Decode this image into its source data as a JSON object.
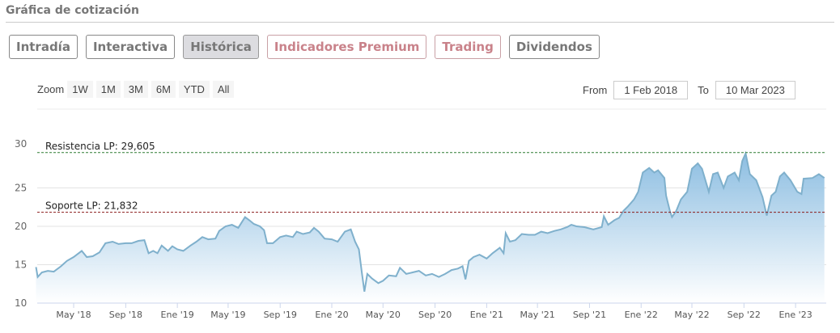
{
  "header": {
    "title": "Gráfica de cotización"
  },
  "tabs": [
    {
      "label": "Intradía",
      "style": "normal"
    },
    {
      "label": "Interactiva",
      "style": "normal"
    },
    {
      "label": "Histórica",
      "style": "active"
    },
    {
      "label": "Indicadores Premium",
      "style": "premium"
    },
    {
      "label": "Trading",
      "style": "premium"
    },
    {
      "label": "Dividendos",
      "style": "normal"
    }
  ],
  "zoom": {
    "label": "Zoom",
    "buttons": [
      "1W",
      "1M",
      "3M",
      "6M",
      "YTD",
      "All"
    ]
  },
  "range": {
    "from_label": "From",
    "from_value": "1 Feb 2018",
    "to_label": "To",
    "to_value": "10 Mar 2023"
  },
  "chart_data": {
    "type": "area",
    "ylim": [
      10,
      30
    ],
    "xlim": [
      "2018-02-01",
      "2023-03-10"
    ],
    "grid": true,
    "yticks": [
      10,
      15,
      20,
      25,
      30
    ],
    "xticks": [
      {
        "date": "2018-05-01",
        "label": "May '18"
      },
      {
        "date": "2018-09-01",
        "label": "Sep '18"
      },
      {
        "date": "2019-01-01",
        "label": "Ene '19"
      },
      {
        "date": "2019-05-01",
        "label": "May '19"
      },
      {
        "date": "2019-09-01",
        "label": "Sep '19"
      },
      {
        "date": "2020-01-01",
        "label": "Ene '20"
      },
      {
        "date": "2020-05-01",
        "label": "May '20"
      },
      {
        "date": "2020-09-01",
        "label": "Sep '20"
      },
      {
        "date": "2021-01-01",
        "label": "Ene '21"
      },
      {
        "date": "2021-05-01",
        "label": "May '21"
      },
      {
        "date": "2021-09-01",
        "label": "Sep '21"
      },
      {
        "date": "2022-01-01",
        "label": "Ene '22"
      },
      {
        "date": "2022-05-01",
        "label": "May '22"
      },
      {
        "date": "2022-09-01",
        "label": "Sep '22"
      },
      {
        "date": "2023-01-01",
        "label": "Ene '23"
      }
    ],
    "lines": [
      {
        "label": "Resistencia LP: 29,605",
        "value": 29.605,
        "color": "#2e7d32"
      },
      {
        "label": "Soporte LP: 21,832",
        "value": 21.832,
        "color": "#8b1a1a"
      }
    ],
    "colors": {
      "line": "#7fb0cc",
      "fill_top": "#7fb6de",
      "fill_bottom": "#ffffff"
    },
    "points": [
      [
        "2018-02-01",
        14.7
      ],
      [
        "2018-02-05",
        13.4
      ],
      [
        "2018-02-15",
        14.0
      ],
      [
        "2018-03-01",
        14.2
      ],
      [
        "2018-03-15",
        14.1
      ],
      [
        "2018-04-01",
        14.8
      ],
      [
        "2018-04-15",
        15.5
      ],
      [
        "2018-05-01",
        16.0
      ],
      [
        "2018-05-20",
        16.8
      ],
      [
        "2018-06-01",
        16.0
      ],
      [
        "2018-06-15",
        16.1
      ],
      [
        "2018-07-01",
        16.6
      ],
      [
        "2018-07-15",
        17.8
      ],
      [
        "2018-08-01",
        18.0
      ],
      [
        "2018-08-15",
        17.7
      ],
      [
        "2018-09-01",
        17.8
      ],
      [
        "2018-09-15",
        17.8
      ],
      [
        "2018-10-01",
        18.1
      ],
      [
        "2018-10-15",
        18.2
      ],
      [
        "2018-10-25",
        16.5
      ],
      [
        "2018-11-05",
        16.8
      ],
      [
        "2018-11-15",
        16.5
      ],
      [
        "2018-11-25",
        17.5
      ],
      [
        "2018-12-10",
        16.8
      ],
      [
        "2018-12-20",
        17.4
      ],
      [
        "2019-01-01",
        17.0
      ],
      [
        "2019-01-15",
        16.8
      ],
      [
        "2019-02-01",
        17.5
      ],
      [
        "2019-02-15",
        18.0
      ],
      [
        "2019-03-01",
        18.6
      ],
      [
        "2019-03-15",
        18.3
      ],
      [
        "2019-04-01",
        18.4
      ],
      [
        "2019-04-10",
        19.4
      ],
      [
        "2019-04-25",
        20.0
      ],
      [
        "2019-05-10",
        20.2
      ],
      [
        "2019-05-25",
        19.8
      ],
      [
        "2019-06-10",
        21.2
      ],
      [
        "2019-06-20",
        20.8
      ],
      [
        "2019-07-01",
        20.3
      ],
      [
        "2019-07-15",
        20.0
      ],
      [
        "2019-07-25",
        19.5
      ],
      [
        "2019-08-01",
        17.8
      ],
      [
        "2019-08-15",
        17.8
      ],
      [
        "2019-09-01",
        18.6
      ],
      [
        "2019-09-15",
        18.8
      ],
      [
        "2019-10-01",
        18.6
      ],
      [
        "2019-10-10",
        19.3
      ],
      [
        "2019-10-25",
        19.0
      ],
      [
        "2019-11-10",
        19.2
      ],
      [
        "2019-11-20",
        19.8
      ],
      [
        "2019-12-01",
        19.3
      ],
      [
        "2019-12-15",
        18.4
      ],
      [
        "2020-01-01",
        18.3
      ],
      [
        "2020-01-15",
        18.0
      ],
      [
        "2020-02-01",
        19.3
      ],
      [
        "2020-02-15",
        19.6
      ],
      [
        "2020-02-25",
        18.0
      ],
      [
        "2020-03-05",
        17.0
      ],
      [
        "2020-03-12",
        14.0
      ],
      [
        "2020-03-18",
        11.5
      ],
      [
        "2020-03-25",
        13.8
      ],
      [
        "2020-04-05",
        13.2
      ],
      [
        "2020-04-20",
        12.6
      ],
      [
        "2020-05-01",
        12.9
      ],
      [
        "2020-05-15",
        13.6
      ],
      [
        "2020-06-01",
        13.5
      ],
      [
        "2020-06-10",
        14.6
      ],
      [
        "2020-06-25",
        13.8
      ],
      [
        "2020-07-10",
        14.0
      ],
      [
        "2020-07-25",
        14.2
      ],
      [
        "2020-08-10",
        13.6
      ],
      [
        "2020-08-25",
        13.8
      ],
      [
        "2020-09-10",
        13.4
      ],
      [
        "2020-09-25",
        13.8
      ],
      [
        "2020-10-10",
        14.3
      ],
      [
        "2020-10-25",
        14.5
      ],
      [
        "2020-11-05",
        14.8
      ],
      [
        "2020-11-12",
        13.1
      ],
      [
        "2020-11-20",
        15.5
      ],
      [
        "2020-12-01",
        16.0
      ],
      [
        "2020-12-15",
        16.3
      ],
      [
        "2021-01-01",
        15.8
      ],
      [
        "2021-01-15",
        16.5
      ],
      [
        "2021-02-01",
        17.2
      ],
      [
        "2021-02-10",
        16.5
      ],
      [
        "2021-02-15",
        19.1
      ],
      [
        "2021-02-25",
        18.0
      ],
      [
        "2021-03-10",
        18.2
      ],
      [
        "2021-03-25",
        19.0
      ],
      [
        "2021-04-10",
        18.9
      ],
      [
        "2021-04-25",
        18.9
      ],
      [
        "2021-05-10",
        19.3
      ],
      [
        "2021-05-25",
        19.1
      ],
      [
        "2021-06-10",
        19.4
      ],
      [
        "2021-06-25",
        19.6
      ],
      [
        "2021-07-10",
        19.9
      ],
      [
        "2021-07-20",
        20.2
      ],
      [
        "2021-08-01",
        20.0
      ],
      [
        "2021-08-20",
        19.9
      ],
      [
        "2021-09-10",
        19.6
      ],
      [
        "2021-09-30",
        19.9
      ],
      [
        "2021-10-05",
        21.3
      ],
      [
        "2021-10-15",
        20.2
      ],
      [
        "2021-10-30",
        20.8
      ],
      [
        "2021-11-10",
        21.1
      ],
      [
        "2021-11-20",
        22.0
      ],
      [
        "2021-12-01",
        22.6
      ],
      [
        "2021-12-15",
        23.5
      ],
      [
        "2021-12-25",
        24.5
      ],
      [
        "2022-01-05",
        27.0
      ],
      [
        "2022-01-20",
        27.6
      ],
      [
        "2022-02-01",
        27.0
      ],
      [
        "2022-02-10",
        27.3
      ],
      [
        "2022-02-25",
        26.3
      ],
      [
        "2022-03-01",
        24.0
      ],
      [
        "2022-03-10",
        22.0
      ],
      [
        "2022-03-15",
        21.2
      ],
      [
        "2022-03-25",
        22.0
      ],
      [
        "2022-04-05",
        23.5
      ],
      [
        "2022-04-20",
        24.5
      ],
      [
        "2022-05-01",
        27.5
      ],
      [
        "2022-05-15",
        28.2
      ],
      [
        "2022-05-25",
        27.5
      ],
      [
        "2022-06-10",
        24.5
      ],
      [
        "2022-06-20",
        26.8
      ],
      [
        "2022-07-01",
        27.0
      ],
      [
        "2022-07-15",
        25.0
      ],
      [
        "2022-07-25",
        26.5
      ],
      [
        "2022-08-10",
        27.0
      ],
      [
        "2022-08-20",
        26.0
      ],
      [
        "2022-08-28",
        28.5
      ],
      [
        "2022-09-05",
        29.5
      ],
      [
        "2022-09-15",
        26.8
      ],
      [
        "2022-09-30",
        26.0
      ],
      [
        "2022-10-15",
        23.8
      ],
      [
        "2022-10-25",
        21.4
      ],
      [
        "2022-11-05",
        24.0
      ],
      [
        "2022-11-15",
        24.5
      ],
      [
        "2022-11-25",
        26.5
      ],
      [
        "2022-12-05",
        27.0
      ],
      [
        "2022-12-20",
        26.0
      ],
      [
        "2023-01-05",
        24.5
      ],
      [
        "2023-01-15",
        24.2
      ],
      [
        "2023-01-20",
        26.2
      ],
      [
        "2023-02-10",
        26.3
      ],
      [
        "2023-02-25",
        26.8
      ],
      [
        "2023-03-10",
        26.3
      ]
    ]
  }
}
